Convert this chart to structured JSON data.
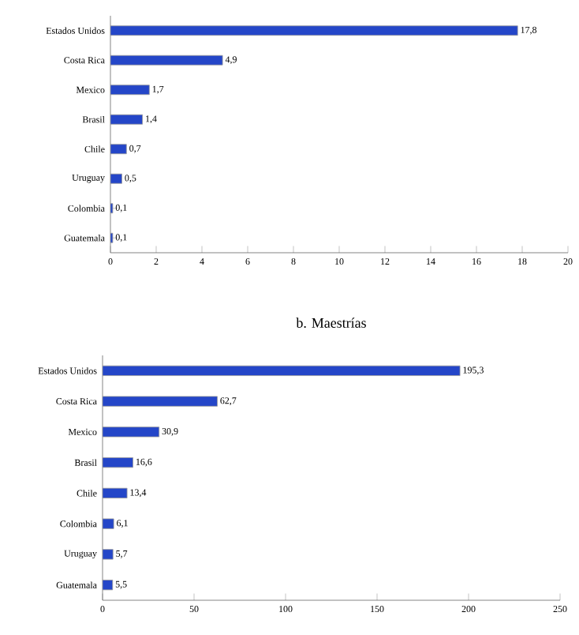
{
  "chart_data": [
    {
      "type": "bar",
      "orientation": "horizontal",
      "categories": [
        "Estados Unidos",
        "Costa Rica",
        "Mexico",
        "Brasil",
        "Chile",
        "Uruguay",
        "Colombia",
        "Guatemala"
      ],
      "values": [
        17.8,
        4.9,
        1.7,
        1.4,
        0.7,
        0.5,
        0.1,
        0.1
      ],
      "value_labels": [
        "17,8",
        "4,9",
        "1,7",
        "1,4",
        "0,7",
        "0,5",
        "0,1",
        "0,1"
      ],
      "color": "#2446c8",
      "xlim": [
        0,
        20
      ],
      "xticks": [
        0,
        2,
        4,
        6,
        8,
        10,
        12,
        14,
        16,
        18,
        20
      ]
    },
    {
      "type": "bar",
      "orientation": "horizontal",
      "title": "b. Maestrías",
      "categories": [
        "Estados Unidos",
        "Costa Rica",
        "Mexico",
        "Brasil",
        "Chile",
        "Colombia",
        "Uruguay",
        "Guatemala"
      ],
      "values": [
        195.3,
        62.7,
        30.9,
        16.6,
        13.4,
        6.1,
        5.7,
        5.5
      ],
      "value_labels": [
        "195,3",
        "62,7",
        "30,9",
        "16,6",
        "13,4",
        "6,1",
        "5,7",
        "5,5"
      ],
      "color": "#2446c8",
      "xlim": [
        0,
        250
      ],
      "xticks": [
        0,
        50,
        100,
        150,
        200,
        250
      ]
    }
  ]
}
